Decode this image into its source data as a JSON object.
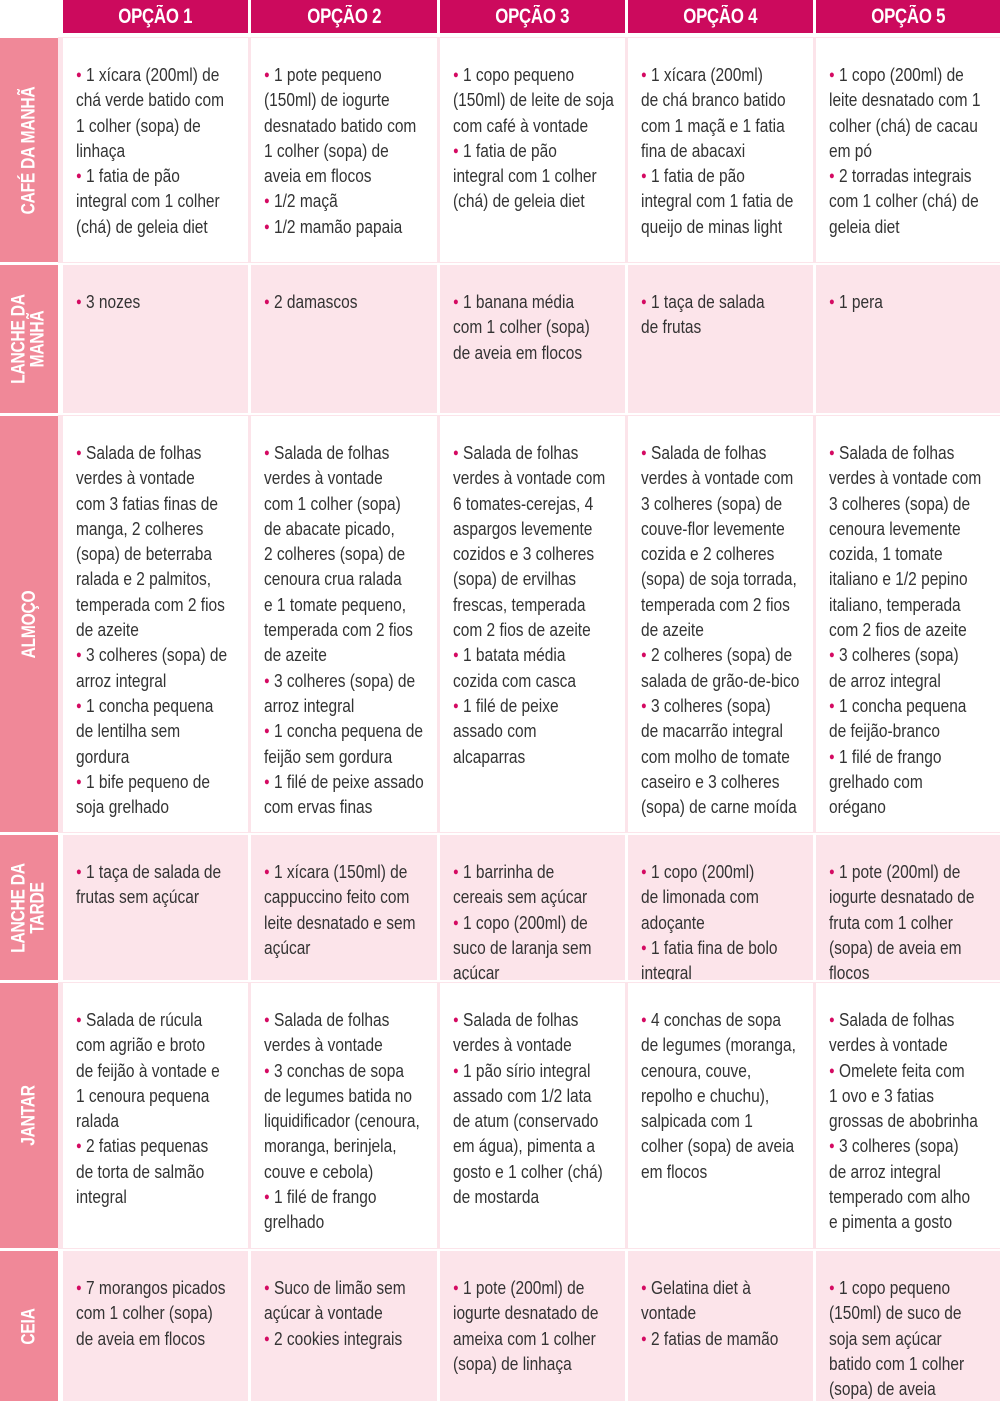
{
  "headers": [
    "OPÇÃO 1",
    "OPÇÃO 2",
    "OPÇÃO 3",
    "OPÇÃO 4",
    "OPÇÃO 5"
  ],
  "colors": {
    "header": "#cc0a5d",
    "row_label": "#f08898",
    "row_pink": "#fce4ea",
    "bullet": "#d40a62"
  },
  "rows": [
    {
      "label": "CAFÉ DA MANHÃ",
      "cells": [
        [
          [
            "1 xícara (200ml) de",
            "chá verde batido com",
            "1 colher (sopa) de",
            "linhaça"
          ],
          [
            "1 fatia de pão",
            "integral com 1 colher",
            "(chá) de geleia diet"
          ]
        ],
        [
          [
            "1 pote pequeno",
            "(150ml) de iogurte",
            "desnatado batido com",
            "1 colher (sopa) de",
            "aveia em flocos"
          ],
          [
            "1/2 maçã"
          ],
          [
            "1/2 mamão papaia"
          ]
        ],
        [
          [
            "1 copo pequeno",
            "(150ml) de leite de soja",
            "com café à vontade"
          ],
          [
            "1 fatia de pão",
            "integral com 1 colher",
            "(chá) de geleia diet"
          ]
        ],
        [
          [
            "1 xícara (200ml)",
            "de chá branco batido",
            "com 1 maçã e 1 fatia",
            "fina de abacaxi"
          ],
          [
            "1 fatia de pão",
            "integral com 1 fatia de",
            "queijo de minas light"
          ]
        ],
        [
          [
            "1 copo (200ml) de",
            "leite desnatado com 1",
            "colher (chá) de cacau",
            "em pó"
          ],
          [
            "2 torradas integrais",
            "com 1 colher (chá) de",
            "geleia diet"
          ]
        ]
      ]
    },
    {
      "label": "LANCHE DA\nMANHÃ",
      "cells": [
        [
          [
            "3 nozes"
          ]
        ],
        [
          [
            "2 damascos"
          ]
        ],
        [
          [
            "1 banana média",
            "com 1 colher (sopa)",
            "de aveia em flocos"
          ]
        ],
        [
          [
            "1 taça de salada",
            "de frutas"
          ]
        ],
        [
          [
            "1 pera"
          ]
        ]
      ]
    },
    {
      "label": "ALMOÇO",
      "cells": [
        [
          [
            "Salada de folhas",
            "verdes à vontade",
            "com 3 fatias finas de",
            "manga, 2 colheres",
            "(sopa) de beterraba",
            "ralada e 2 palmitos,",
            "temperada com 2 fios",
            "de azeite"
          ],
          [
            "3 colheres (sopa) de",
            "arroz integral"
          ],
          [
            "1 concha pequena",
            "de lentilha sem",
            "gordura"
          ],
          [
            "1 bife pequeno de",
            "soja grelhado"
          ]
        ],
        [
          [
            "Salada de folhas",
            "verdes à vontade",
            "com 1 colher (sopa)",
            "de abacate picado,",
            "2 colheres (sopa) de",
            "cenoura crua ralada",
            "e 1 tomate pequeno,",
            "temperada com 2 fios",
            "de azeite"
          ],
          [
            "3 colheres (sopa) de",
            "arroz integral"
          ],
          [
            "1 concha pequena de",
            "feijão sem gordura"
          ],
          [
            "1 filé de peixe assado",
            "com ervas finas"
          ]
        ],
        [
          [
            "Salada de folhas",
            "verdes à vontade com",
            "6 tomates-cerejas, 4",
            "aspargos levemente",
            "cozidos e 3 colheres",
            "(sopa) de ervilhas",
            "frescas, temperada",
            "com 2 fios de azeite"
          ],
          [
            "1 batata média",
            "cozida com casca"
          ],
          [
            "1 filé de peixe",
            "assado com",
            "alcaparras"
          ]
        ],
        [
          [
            "Salada de folhas",
            "verdes à vontade com",
            "3 colheres (sopa) de",
            "couve-flor levemente",
            "cozida e 2 colheres",
            "(sopa) de soja torrada,",
            "temperada com 2 fios",
            "de azeite"
          ],
          [
            "2 colheres (sopa) de",
            "salada de grão-de-bico"
          ],
          [
            "3 colheres (sopa)",
            "de macarrão integral",
            "com molho de tomate",
            "caseiro e 3 colheres",
            "(sopa) de carne moída"
          ]
        ],
        [
          [
            "Salada de folhas",
            "verdes à vontade com",
            "3 colheres (sopa) de",
            "cenoura levemente",
            "cozida, 1 tomate",
            "italiano e 1/2 pepino",
            "italiano, temperada",
            "com 2 fios de azeite"
          ],
          [
            "3 colheres (sopa)",
            "de arroz integral"
          ],
          [
            "1 concha pequena",
            "de feijão-branco"
          ],
          [
            "1 filé de frango",
            "grelhado com",
            "orégano"
          ]
        ]
      ]
    },
    {
      "label": "LANCHE DA\nTARDE",
      "cells": [
        [
          [
            "1 taça de salada de",
            "frutas sem açúcar"
          ]
        ],
        [
          [
            "1 xícara (150ml) de",
            "cappuccino feito com",
            "leite desnatado e sem",
            "açúcar"
          ]
        ],
        [
          [
            "1 barrinha de",
            "cereais sem açúcar"
          ],
          [
            "1 copo (200ml) de",
            "suco de laranja sem",
            "açúcar"
          ]
        ],
        [
          [
            "1 copo (200ml)",
            "de limonada com",
            "adoçante"
          ],
          [
            "1 fatia fina de bolo",
            "integral"
          ]
        ],
        [
          [
            "1 pote (200ml) de",
            "iogurte desnatado de",
            "fruta com 1 colher",
            "(sopa) de aveia em",
            "flocos"
          ]
        ]
      ]
    },
    {
      "label": "JANTAR",
      "cells": [
        [
          [
            "Salada de rúcula",
            "com agrião e broto",
            "de feijão à vontade e",
            "1 cenoura pequena",
            "ralada"
          ],
          [
            "2 fatias pequenas",
            "de torta de salmão",
            "integral"
          ]
        ],
        [
          [
            "Salada de folhas",
            "verdes à vontade"
          ],
          [
            "3 conchas de sopa",
            "de legumes batida no",
            "liquidificador (cenoura,",
            "moranga, berinjela,",
            "couve e cebola)"
          ],
          [
            "1 filé de frango",
            "grelhado"
          ]
        ],
        [
          [
            "Salada de folhas",
            "verdes à vontade"
          ],
          [
            "1 pão sírio integral",
            "assado com 1/2 lata",
            "de atum (conservado",
            "em água), pimenta a",
            "gosto e 1 colher (chá)",
            "de mostarda"
          ]
        ],
        [
          [
            "4 conchas de sopa",
            "de legumes (moranga,",
            "cenoura, couve,",
            "repolho e chuchu),",
            "salpicada com 1",
            "colher (sopa) de aveia",
            "em flocos"
          ]
        ],
        [
          [
            "Salada de folhas",
            "verdes à vontade"
          ],
          [
            "Omelete feita com",
            "1 ovo e 3 fatias",
            "grossas de abobrinha"
          ],
          [
            "3 colheres (sopa)",
            "de arroz integral",
            "temperado com alho",
            "e pimenta a gosto"
          ]
        ]
      ]
    },
    {
      "label": "CEIA",
      "cells": [
        [
          [
            "7 morangos picados",
            "com 1 colher (sopa)",
            "de aveia em flocos"
          ]
        ],
        [
          [
            "Suco de limão sem",
            "açúcar à vontade"
          ],
          [
            "2 cookies integrais"
          ]
        ],
        [
          [
            "1 pote (200ml) de",
            "iogurte desnatado de",
            "ameixa com 1 colher",
            "(sopa) de linhaça"
          ]
        ],
        [
          [
            "Gelatina diet à",
            "vontade"
          ],
          [
            "2 fatias de mamão"
          ]
        ],
        [
          [
            "1 copo pequeno",
            "(150ml) de suco de",
            "soja sem açúcar",
            "batido com 1 colher",
            "(sopa) de aveia"
          ]
        ]
      ]
    }
  ]
}
